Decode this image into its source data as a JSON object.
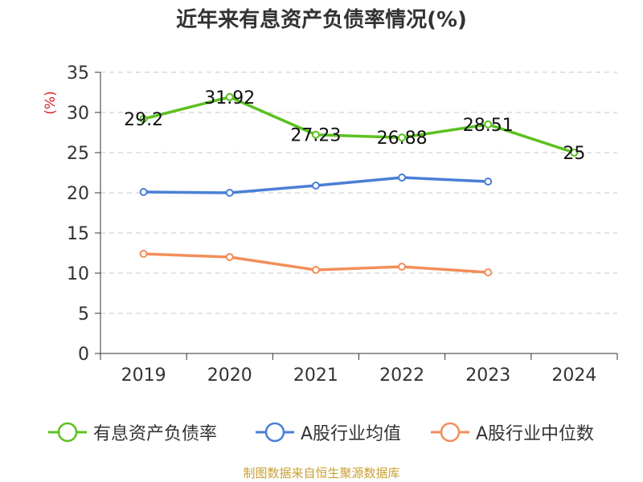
{
  "title": "近年来有息资产负债率情况(%)",
  "source": "制图数据来自恒生聚源数据库",
  "chart_data": {
    "type": "line",
    "title": "近年来有息资产负债率情况(%)",
    "ylabel": "(%)",
    "xlabel": "",
    "categories": [
      "2019",
      "2020",
      "2021",
      "2022",
      "2023",
      "2024"
    ],
    "ylim": [
      0,
      35
    ],
    "yticks": [
      0,
      5,
      10,
      15,
      20,
      25,
      30,
      35
    ],
    "grid": true,
    "legend": "bottom",
    "series": [
      {
        "name": "有息资产负债率",
        "color": "#5cc11f",
        "values": [
          29.2,
          31.92,
          27.23,
          26.88,
          28.51,
          25
        ],
        "labels": [
          "29.2",
          "31.92",
          "27.23",
          "26.88",
          "28.51",
          "25"
        ]
      },
      {
        "name": "A股行业均值",
        "color": "#4a7fd6",
        "values": [
          20.1,
          20.0,
          20.9,
          21.9,
          21.4,
          null
        ]
      },
      {
        "name": "A股行业中位数",
        "color": "#f28e5a",
        "values": [
          12.4,
          12.0,
          10.4,
          10.8,
          10.1,
          null
        ]
      }
    ]
  }
}
